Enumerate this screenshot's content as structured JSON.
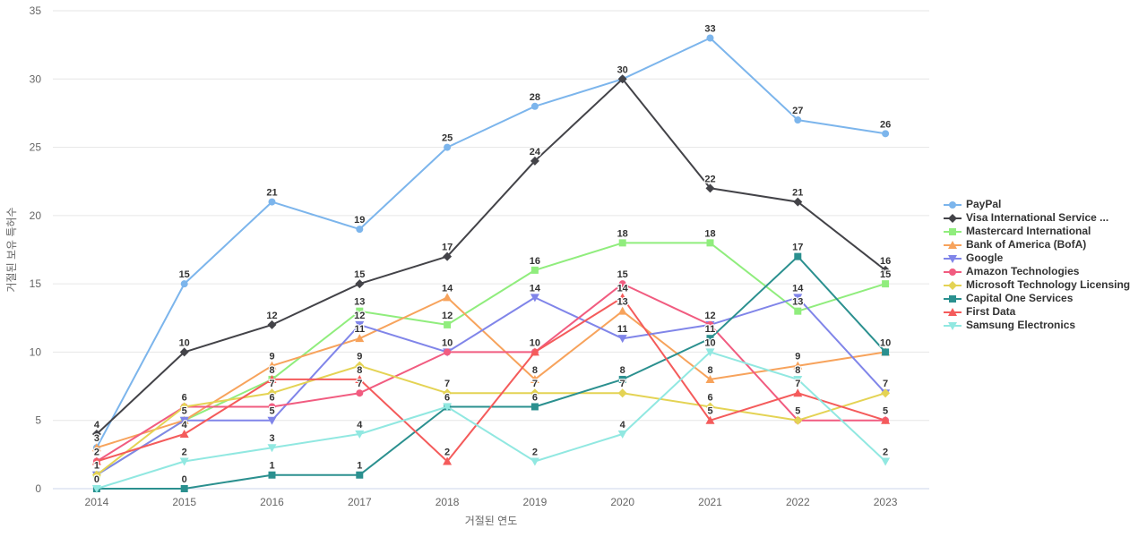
{
  "chart_data": {
    "type": "line",
    "title": "",
    "xlabel": "거절된 연도",
    "ylabel": "거절된 보유 특허수",
    "x": [
      "2014",
      "2015",
      "2016",
      "2017",
      "2018",
      "2019",
      "2020",
      "2021",
      "2022",
      "2023"
    ],
    "ylim": [
      0,
      35
    ],
    "yticks": [
      0,
      5,
      10,
      15,
      20,
      25,
      30,
      35
    ],
    "grid": "horizontal gridlines only",
    "legend_position": "right-middle",
    "data_labels": "shown above points, duplicates at same point hidden",
    "series": [
      {
        "name": "PayPal",
        "color": "#7cb5ec",
        "marker": "circle",
        "values": [
          3,
          15,
          21,
          19,
          25,
          28,
          30,
          33,
          27,
          26
        ]
      },
      {
        "name": "Visa International Service ...",
        "color": "#434348",
        "marker": "diamond",
        "values": [
          4,
          10,
          12,
          15,
          17,
          24,
          30,
          22,
          21,
          16
        ]
      },
      {
        "name": "Mastercard International",
        "color": "#90ed7d",
        "marker": "square",
        "values": [
          1,
          5,
          8,
          13,
          12,
          16,
          18,
          18,
          13,
          15
        ]
      },
      {
        "name": "Bank of America (BofA)",
        "color": "#f7a35c",
        "marker": "triangle",
        "values": [
          3,
          5,
          9,
          11,
          14,
          8,
          13,
          8,
          9,
          10
        ]
      },
      {
        "name": "Google",
        "color": "#8085e9",
        "marker": "triangle-down",
        "values": [
          1,
          5,
          5,
          12,
          10,
          14,
          11,
          12,
          14,
          7
        ]
      },
      {
        "name": "Amazon Technologies",
        "color": "#f15c80",
        "marker": "circle",
        "values": [
          2,
          6,
          6,
          7,
          10,
          10,
          15,
          12,
          5,
          5
        ]
      },
      {
        "name": "Microsoft Technology Licensing",
        "color": "#e4d354",
        "marker": "diamond",
        "values": [
          1,
          6,
          7,
          9,
          7,
          7,
          7,
          6,
          5,
          7
        ]
      },
      {
        "name": "Capital One Services",
        "color": "#2b908f",
        "marker": "square",
        "values": [
          0,
          0,
          1,
          1,
          6,
          6,
          8,
          11,
          17,
          10
        ]
      },
      {
        "name": "First Data",
        "color": "#f45b5b",
        "marker": "triangle",
        "values": [
          2,
          4,
          8,
          8,
          2,
          10,
          14,
          5,
          7,
          5
        ]
      },
      {
        "name": "Samsung Electronics",
        "color": "#91e8e1",
        "marker": "triangle-down",
        "values": [
          0,
          2,
          3,
          4,
          6,
          2,
          4,
          10,
          8,
          2
        ]
      }
    ],
    "style": {
      "grid_color": "#e6e6e6",
      "axis_line_color": "#ccd6eb",
      "tick_label_color": "#666666",
      "data_label_color": "#333333",
      "legend_text_color": "#333333",
      "background": "#ffffff"
    }
  }
}
